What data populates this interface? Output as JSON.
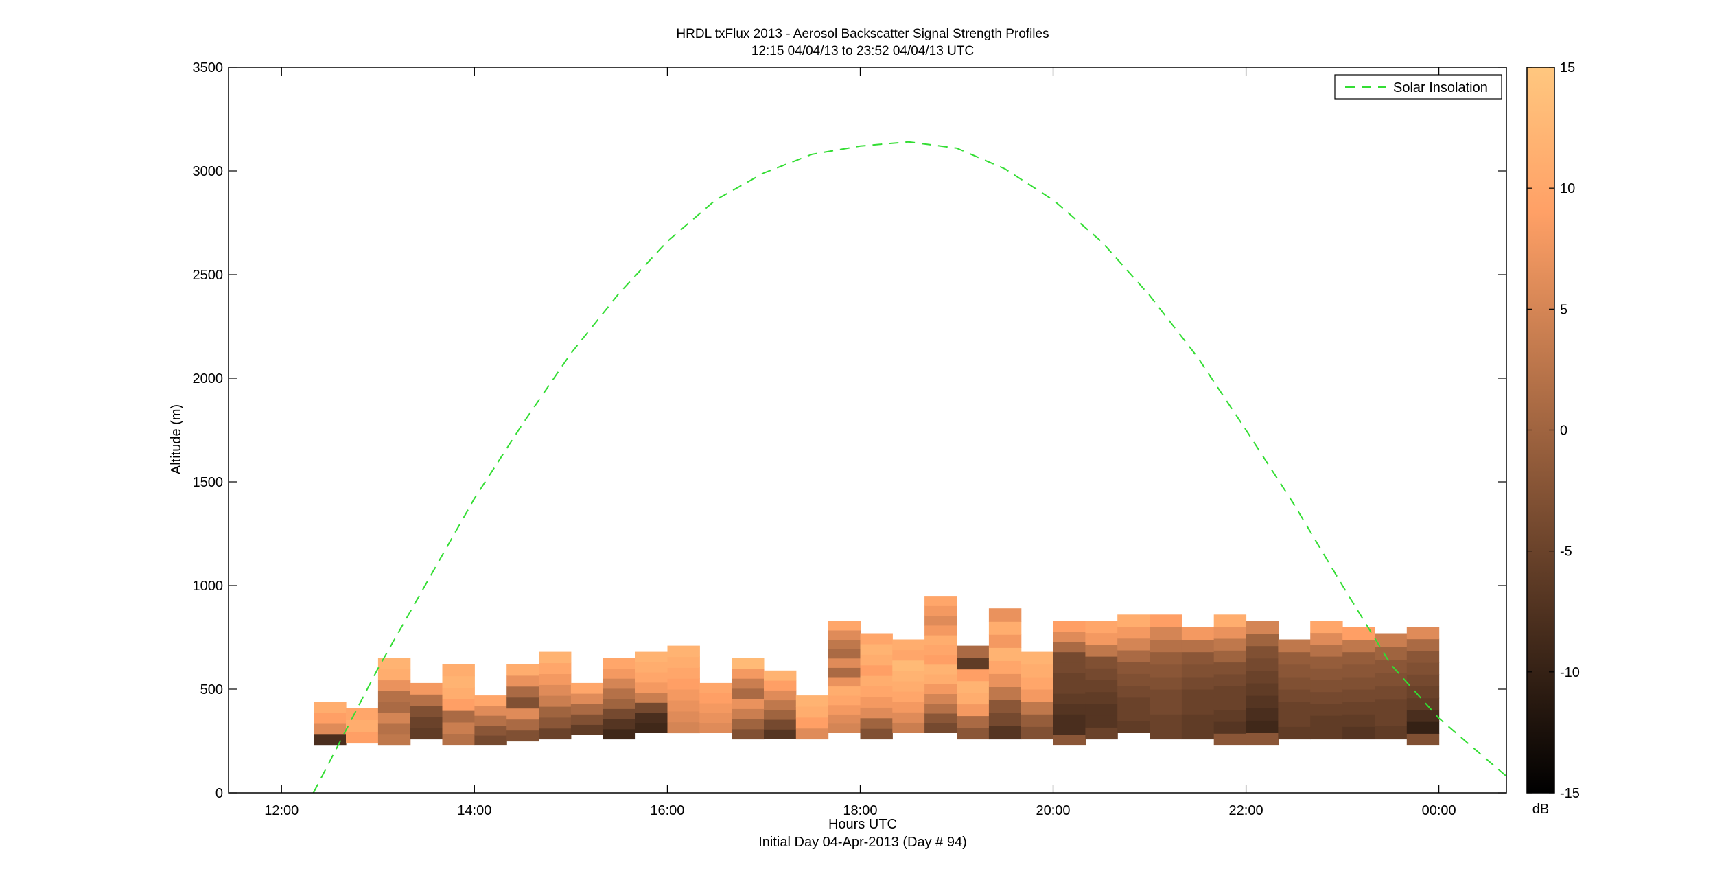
{
  "chart_data": {
    "type": "heatmap",
    "title": "HRDL txFlux 2013 - Aerosol Backscatter Signal Strength Profiles",
    "subtitle": "12:15 04/04/13 to 23:52 04/04/13  UTC",
    "xlabel": "Hours UTC",
    "xlabel2": "Initial Day 04-Apr-2013 (Day # 94)",
    "ylabel": "Altitude (m)",
    "xlim": [
      11.45,
      24.7
    ],
    "ylim": [
      0,
      3500
    ],
    "xticks": [
      12,
      14,
      16,
      18,
      20,
      22,
      24
    ],
    "xtick_labels": [
      "12:00",
      "14:00",
      "16:00",
      "18:00",
      "20:00",
      "22:00",
      "00:00"
    ],
    "yticks": [
      0,
      500,
      1000,
      1500,
      2000,
      2500,
      3000,
      3500
    ],
    "ytick_labels": [
      "0",
      "500",
      "1000",
      "1500",
      "2000",
      "2500",
      "3000",
      "3500"
    ],
    "colorbar": {
      "range": [
        -15,
        15
      ],
      "ticks": [
        -15,
        -10,
        -5,
        0,
        5,
        10,
        15
      ],
      "tick_labels": [
        "-15",
        "-10",
        "-5",
        "0",
        "5",
        "10",
        "15"
      ],
      "unit": "dB",
      "colormap": "copper"
    },
    "legend": {
      "label": "Solar Insolation",
      "position": "top-right",
      "color": "#33dd33",
      "style": "dashed"
    },
    "bin_width_hours": 0.333,
    "profiles": [
      {
        "t": 12.5,
        "bottom": 230,
        "top": 440,
        "dB": [
          -8,
          6,
          9,
          11
        ]
      },
      {
        "t": 12.833,
        "bottom": 240,
        "top": 410,
        "dB": [
          9,
          11,
          10
        ]
      },
      {
        "t": 13.167,
        "bottom": 230,
        "top": 650,
        "dB": [
          3,
          2,
          5,
          1,
          2,
          7,
          11,
          12
        ]
      },
      {
        "t": 13.5,
        "bottom": 260,
        "top": 530,
        "dB": [
          -6,
          -5,
          -3,
          2,
          8
        ]
      },
      {
        "t": 13.833,
        "bottom": 230,
        "top": 620,
        "dB": [
          2,
          4,
          1,
          9,
          11,
          12,
          11
        ]
      },
      {
        "t": 14.167,
        "bottom": 230,
        "top": 470,
        "dB": [
          -4,
          -2,
          2,
          6,
          10
        ]
      },
      {
        "t": 14.5,
        "bottom": 250,
        "top": 620,
        "dB": [
          -3,
          1,
          6,
          -3,
          1,
          7,
          11
        ]
      },
      {
        "t": 14.833,
        "bottom": 260,
        "top": 680,
        "dB": [
          -5,
          -2,
          0,
          4,
          6,
          8,
          10,
          12
        ]
      },
      {
        "t": 15.167,
        "bottom": 280,
        "top": 530,
        "dB": [
          -6,
          -3,
          1,
          6,
          10
        ]
      },
      {
        "t": 15.5,
        "bottom": 260,
        "top": 650,
        "dB": [
          -9,
          -7,
          -4,
          0,
          2,
          5,
          8,
          10
        ]
      },
      {
        "t": 15.833,
        "bottom": 290,
        "top": 680,
        "dB": [
          -9,
          -8,
          -4,
          4,
          8,
          10,
          11,
          12
        ]
      },
      {
        "t": 16.167,
        "bottom": 290,
        "top": 710,
        "dB": [
          5,
          6,
          7,
          8,
          9,
          10,
          11,
          12
        ]
      },
      {
        "t": 16.5,
        "bottom": 290,
        "top": 530,
        "dB": [
          6,
          7,
          8,
          9,
          10
        ]
      },
      {
        "t": 16.833,
        "bottom": 260,
        "top": 650,
        "dB": [
          -3,
          0,
          4,
          7,
          1,
          4,
          8,
          13
        ]
      },
      {
        "t": 17.167,
        "bottom": 260,
        "top": 590,
        "dB": [
          -7,
          -4,
          0,
          3,
          6,
          9,
          12
        ]
      },
      {
        "t": 17.5,
        "bottom": 260,
        "top": 470,
        "dB": [
          6,
          9,
          11,
          12
        ]
      },
      {
        "t": 17.833,
        "bottom": 290,
        "top": 830,
        "dB": [
          5,
          6,
          8,
          10,
          11,
          7,
          1,
          6,
          1,
          3,
          6,
          10
        ]
      },
      {
        "t": 18.167,
        "bottom": 260,
        "top": 770,
        "dB": [
          -3,
          0,
          6,
          8,
          10,
          11,
          9,
          11,
          12,
          10
        ]
      },
      {
        "t": 18.5,
        "bottom": 290,
        "top": 740,
        "dB": [
          4,
          6,
          8,
          10,
          11,
          12,
          13,
          10,
          11
        ]
      },
      {
        "t": 18.833,
        "bottom": 290,
        "top": 950,
        "dB": [
          -4,
          -2,
          2,
          5,
          8,
          11,
          12,
          9,
          10,
          11,
          8,
          6,
          8,
          10
        ]
      },
      {
        "t": 19.167,
        "bottom": 260,
        "top": 710,
        "dB": [
          -2,
          1,
          8,
          11,
          12,
          9,
          -6,
          1
        ]
      },
      {
        "t": 19.5,
        "bottom": 260,
        "top": 890,
        "dB": [
          -7,
          -4,
          -2,
          3,
          7,
          10,
          12,
          8,
          11,
          7
        ]
      },
      {
        "t": 19.833,
        "bottom": 260,
        "top": 680,
        "dB": [
          -3,
          -1,
          3,
          8,
          10,
          11,
          12
        ]
      },
      {
        "t": 20.167,
        "bottom": 230,
        "top": 830,
        "dB": [
          -2,
          -8,
          -8,
          -7,
          -6,
          -5,
          -5,
          -4,
          -4,
          1,
          6,
          9
        ]
      },
      {
        "t": 20.5,
        "bottom": 260,
        "top": 830,
        "dB": [
          -5,
          -7,
          -7,
          -6,
          -5,
          -4,
          -3,
          3,
          8,
          10
        ]
      },
      {
        "t": 20.833,
        "bottom": 290,
        "top": 860,
        "dB": [
          -6,
          -5,
          -5,
          -4,
          -3,
          -2,
          1,
          5,
          8,
          11
        ]
      },
      {
        "t": 21.167,
        "bottom": 260,
        "top": 860,
        "dB": [
          -5,
          -5,
          -4,
          -4,
          -3,
          -2,
          -1,
          2,
          5,
          9
        ]
      },
      {
        "t": 21.5,
        "bottom": 260,
        "top": 800,
        "dB": [
          -6,
          -6,
          -5,
          -5,
          -4,
          -3,
          -2,
          2,
          8
        ]
      },
      {
        "t": 21.833,
        "bottom": 230,
        "top": 860,
        "dB": [
          -2,
          -7,
          -6,
          -5,
          -5,
          -4,
          -3,
          0,
          3,
          7,
          11
        ]
      },
      {
        "t": 22.167,
        "bottom": 230,
        "top": 830,
        "dB": [
          -2,
          -9,
          -8,
          -7,
          -6,
          -5,
          -4,
          -3,
          0,
          5
        ]
      },
      {
        "t": 22.5,
        "bottom": 260,
        "top": 740,
        "dB": [
          -6,
          -5,
          -5,
          -4,
          -3,
          -2,
          -1,
          3
        ]
      },
      {
        "t": 22.833,
        "bottom": 260,
        "top": 830,
        "dB": [
          -6,
          -6,
          -5,
          -4,
          -3,
          -2,
          -1,
          2,
          6,
          10
        ]
      },
      {
        "t": 23.167,
        "bottom": 260,
        "top": 800,
        "dB": [
          -7,
          -6,
          -5,
          -4,
          -3,
          -2,
          -1,
          3,
          9
        ]
      },
      {
        "t": 23.5,
        "bottom": 260,
        "top": 770,
        "dB": [
          -6,
          -5,
          -5,
          -4,
          -3,
          -2,
          0,
          4
        ]
      },
      {
        "t": 23.833,
        "bottom": 230,
        "top": 800,
        "dB": [
          -3,
          -10,
          -8,
          -6,
          -5,
          -4,
          -3,
          -2,
          1,
          6
        ]
      }
    ],
    "solar_insolation_curve": {
      "x": [
        12.33,
        13.0,
        13.5,
        14.0,
        14.5,
        15.0,
        15.5,
        16.0,
        16.5,
        17.0,
        17.5,
        18.0,
        18.5,
        19.0,
        19.5,
        20.0,
        20.5,
        21.0,
        21.5,
        22.0,
        22.5,
        23.0,
        23.5,
        24.0,
        24.7
      ],
      "y": [
        0,
        600,
        1010,
        1420,
        1780,
        2120,
        2410,
        2660,
        2860,
        2990,
        3080,
        3120,
        3140,
        3110,
        3010,
        2860,
        2660,
        2400,
        2100,
        1750,
        1390,
        1000,
        620,
        360,
        80
      ]
    }
  }
}
